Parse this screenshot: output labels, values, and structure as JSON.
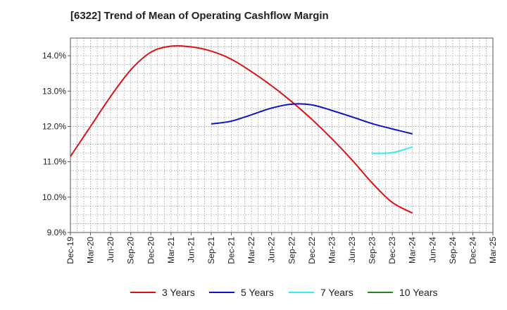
{
  "chart_data": {
    "type": "line",
    "title": "[6322]  Trend of Mean of Operating Cashflow Margin",
    "xlabel": "",
    "ylabel": "",
    "ylim": [
      9.0,
      14.5
    ],
    "y_ticks": [
      9.0,
      10.0,
      11.0,
      12.0,
      13.0,
      14.0
    ],
    "y_tick_labels": [
      "9.0%",
      "10.0%",
      "11.0%",
      "12.0%",
      "13.0%",
      "14.0%"
    ],
    "x_range": [
      "Dec-19",
      "Mar-25"
    ],
    "x_tick_labels": [
      "Dec-19",
      "Mar-20",
      "Jun-20",
      "Sep-20",
      "Dec-20",
      "Mar-21",
      "Jun-21",
      "Sep-21",
      "Dec-21",
      "Mar-22",
      "Jun-22",
      "Sep-22",
      "Dec-22",
      "Mar-23",
      "Jun-23",
      "Sep-23",
      "Dec-23",
      "Mar-24",
      "Jun-24",
      "Sep-24",
      "Dec-24",
      "Mar-25"
    ],
    "grid": true,
    "legend_position": "bottom",
    "series": [
      {
        "name": "3 Years",
        "color": "#dd1111",
        "x": [
          "Dec-19",
          "Mar-20",
          "Jun-20",
          "Sep-20",
          "Dec-20",
          "Mar-21",
          "Jun-21",
          "Sep-21",
          "Dec-21",
          "Mar-22",
          "Jun-22",
          "Sep-22",
          "Dec-22",
          "Mar-23",
          "Jun-23",
          "Sep-23",
          "Dec-23",
          "Mar-24"
        ],
        "values": [
          11.15,
          12.0,
          12.85,
          13.6,
          14.1,
          14.27,
          14.25,
          14.13,
          13.9,
          13.55,
          13.15,
          12.7,
          12.2,
          11.65,
          11.05,
          10.4,
          9.85,
          9.55
        ]
      },
      {
        "name": "5 Years",
        "color": "#1111cc",
        "x": [
          "Sep-21",
          "Dec-21",
          "Mar-22",
          "Jun-22",
          "Sep-22",
          "Dec-22",
          "Mar-23",
          "Jun-23",
          "Sep-23",
          "Dec-23",
          "Mar-24"
        ],
        "values": [
          12.07,
          12.15,
          12.33,
          12.52,
          12.63,
          12.61,
          12.45,
          12.27,
          12.08,
          11.93,
          11.79
        ]
      },
      {
        "name": "7 Years",
        "color": "#33eeee",
        "x": [
          "Sep-23",
          "Dec-23",
          "Mar-24"
        ],
        "values": [
          11.24,
          11.26,
          11.42
        ]
      },
      {
        "name": "10 Years",
        "color": "#228822",
        "x": [],
        "values": []
      }
    ]
  }
}
